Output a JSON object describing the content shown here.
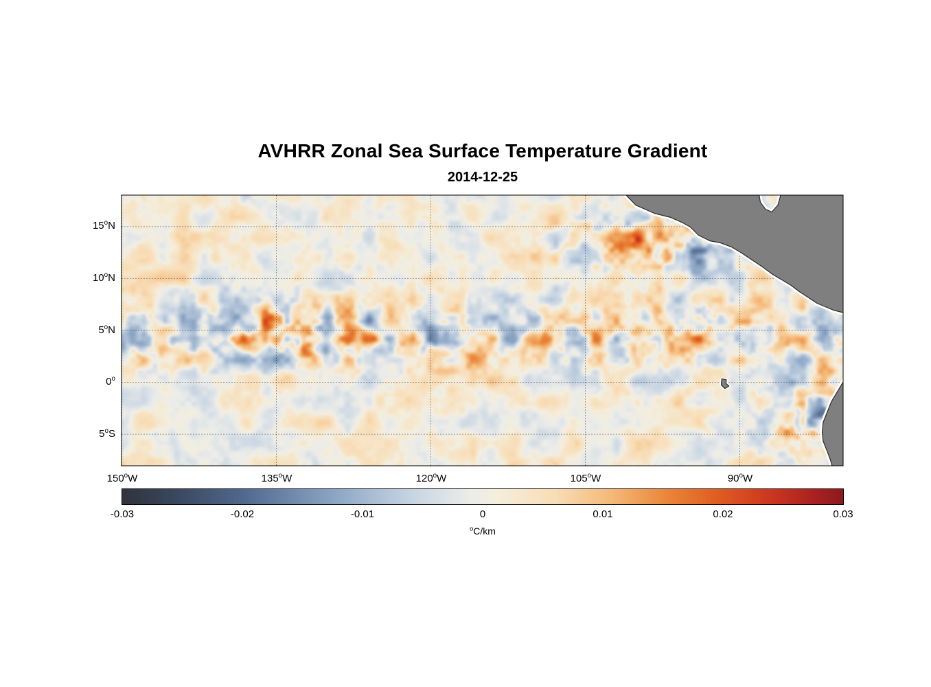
{
  "title": "AVHRR Zonal Sea Surface Temperature Gradient",
  "subtitle": "2014-12-25",
  "chart_data": {
    "type": "heatmap",
    "title": "AVHRR Zonal Sea Surface Temperature Gradient",
    "date": "2014-12-25",
    "field": "zonal sea surface temperature gradient",
    "units_sup": "o",
    "units_text": "C/km",
    "grid": "dotted",
    "extent": {
      "lon_min": -150,
      "lon_max": -80,
      "lat_min": -8,
      "lat_max": 18
    },
    "x_ticks": [
      {
        "num": "150",
        "deg": "o",
        "hemi": "W",
        "lon": -150
      },
      {
        "num": "135",
        "deg": "o",
        "hemi": "W",
        "lon": -135
      },
      {
        "num": "120",
        "deg": "o",
        "hemi": "W",
        "lon": -120
      },
      {
        "num": "105",
        "deg": "o",
        "hemi": "W",
        "lon": -105
      },
      {
        "num": "90",
        "deg": "o",
        "hemi": "W",
        "lon": -90
      }
    ],
    "y_ticks": [
      {
        "num": "15",
        "deg": "o",
        "hemi": "N",
        "lat": 15
      },
      {
        "num": "10",
        "deg": "o",
        "hemi": "N",
        "lat": 10
      },
      {
        "num": "5",
        "deg": "o",
        "hemi": "N",
        "lat": 5
      },
      {
        "num": "0",
        "deg": "o",
        "hemi": "",
        "lat": 0
      },
      {
        "num": "5",
        "deg": "o",
        "hemi": "S",
        "lat": -5
      }
    ],
    "colorbar": {
      "min": -0.03,
      "max": 0.03,
      "orientation": "horizontal",
      "ticks": [
        "-0.03",
        "-0.02",
        "-0.01",
        "0",
        "0.01",
        "0.02",
        "0.03"
      ],
      "stops": [
        [
          0.0,
          "#30333a"
        ],
        [
          0.07,
          "#39465c"
        ],
        [
          0.17,
          "#51698f"
        ],
        [
          0.3,
          "#8fa8c6"
        ],
        [
          0.4,
          "#c6d4e2"
        ],
        [
          0.48,
          "#ebece9"
        ],
        [
          0.52,
          "#f4eedd"
        ],
        [
          0.6,
          "#f8ddb6"
        ],
        [
          0.68,
          "#f4b878"
        ],
        [
          0.76,
          "#e98336"
        ],
        [
          0.83,
          "#df5a21"
        ],
        [
          0.9,
          "#cb3620"
        ],
        [
          0.96,
          "#a92120"
        ],
        [
          1.0,
          "#8c191e"
        ]
      ]
    },
    "land_color": "#7f7f7f",
    "coast_color": "#2a2a2a",
    "land": {
      "central_america": [
        [
          -101.5,
          18.5
        ],
        [
          -100.1,
          17.07
        ],
        [
          -98.3,
          16.28
        ],
        [
          -96.7,
          15.88
        ],
        [
          -95.5,
          15.35
        ],
        [
          -94.8,
          14.96
        ],
        [
          -94.0,
          14.16
        ],
        [
          -92.9,
          13.63
        ],
        [
          -91.9,
          13.44
        ],
        [
          -90.8,
          13.04
        ],
        [
          -89.8,
          12.44
        ],
        [
          -88.8,
          11.78
        ],
        [
          -87.8,
          11.12
        ],
        [
          -86.8,
          10.39
        ],
        [
          -85.8,
          9.8
        ],
        [
          -85.0,
          9.33
        ],
        [
          -84.3,
          8.8
        ],
        [
          -83.3,
          8.14
        ],
        [
          -82.5,
          7.61
        ],
        [
          -81.7,
          7.28
        ],
        [
          -80.9,
          6.95
        ],
        [
          -79.5,
          6.6
        ],
        [
          -79.5,
          18.5
        ],
        [
          -85.9,
          18.5
        ],
        [
          -86.3,
          17.07
        ],
        [
          -86.9,
          16.41
        ],
        [
          -87.5,
          16.68
        ],
        [
          -88.0,
          17.34
        ],
        [
          -88.2,
          18.5
        ]
      ],
      "south_america": [
        [
          -79.5,
          0.8
        ],
        [
          -80.5,
          -0.85
        ],
        [
          -81.1,
          -1.85
        ],
        [
          -81.5,
          -2.84
        ],
        [
          -81.9,
          -3.83
        ],
        [
          -82.0,
          -4.82
        ],
        [
          -81.9,
          -5.68
        ],
        [
          -81.5,
          -6.67
        ],
        [
          -81.2,
          -7.47
        ],
        [
          -80.9,
          -8.5
        ],
        [
          -79.5,
          -8.5
        ]
      ],
      "galapagos": [
        [
          -91.75,
          0.35
        ],
        [
          -91.3,
          0.25
        ],
        [
          -91.35,
          -0.1
        ],
        [
          -91.05,
          -0.35
        ],
        [
          -91.45,
          -0.6
        ],
        [
          -91.8,
          -0.25
        ]
      ]
    },
    "render": {
      "seed": 11,
      "noise_scales": [
        30,
        15,
        8
      ],
      "noise_weights": [
        1,
        0.55,
        0.3
      ],
      "base_amp": 0.0062,
      "bias": 0.0012,
      "zones": [
        {
          "lat": 4.5,
          "lon": null,
          "lat_sigma": 3.2,
          "lon_sigma": null,
          "amp": 0.01
        },
        {
          "lat": 13.5,
          "lon": -97,
          "lat_sigma": 2.8,
          "lon_sigma": 9,
          "amp": 0.017
        },
        {
          "lat": -3.5,
          "lon": -83,
          "lat_sigma": 3.5,
          "lon_sigma": 4.5,
          "amp": 0.016
        },
        {
          "lat": 5,
          "lon": -133,
          "lat_sigma": 3.0,
          "lon_sigma": 6,
          "amp": 0.006
        }
      ]
    }
  }
}
